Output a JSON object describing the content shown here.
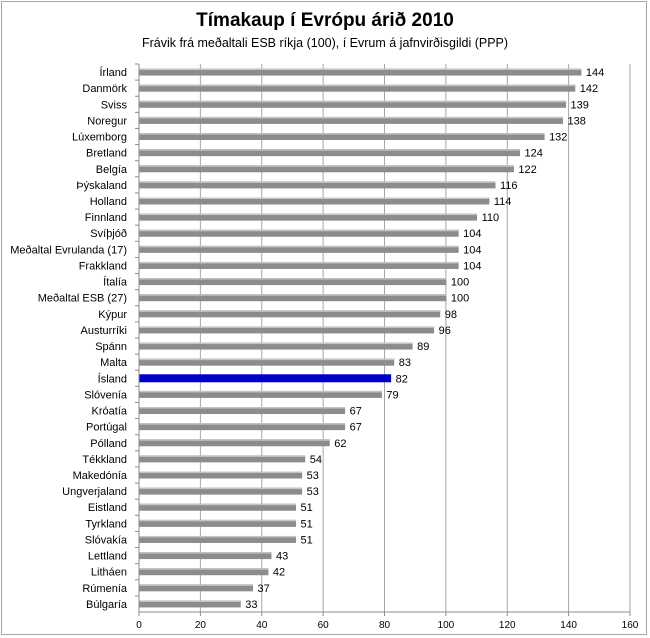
{
  "chart_data": {
    "type": "bar",
    "orientation": "horizontal",
    "title": "Tímakaup í Evrópu árið 2010",
    "subtitle": "Frávik frá meðaltali ESB ríkja (100), í Evrum á jafnvirðisgildi (PPP)",
    "categories": [
      "Írland",
      "Danmörk",
      "Sviss",
      "Noregur",
      "Lúxemborg",
      "Bretland",
      "Belgía",
      "Þýskaland",
      "Holland",
      "Finnland",
      "Svíþjóð",
      "Meðaltal Evrulanda (17)",
      "Frakkland",
      "Ítalía",
      "Meðaltal ESB (27)",
      "Kýpur",
      "Austurríki",
      "Spánn",
      "Malta",
      "Ísland",
      "Slóvenía",
      "Króatía",
      "Portúgal",
      "Pólland",
      "Tékkland",
      "Makedónía",
      "Ungverjaland",
      "Eistland",
      "Tyrkland",
      "Slóvakía",
      "Lettland",
      "Litháen",
      "Rúmenía",
      "Búlgaría"
    ],
    "values": [
      144,
      142,
      139,
      138,
      132,
      124,
      122,
      116,
      114,
      110,
      104,
      104,
      104,
      100,
      100,
      98,
      96,
      89,
      83,
      82,
      79,
      67,
      67,
      62,
      54,
      53,
      53,
      51,
      51,
      51,
      43,
      42,
      37,
      33
    ],
    "highlight": "Ísland",
    "xlim": [
      0,
      160
    ],
    "xticks": [
      0,
      20,
      40,
      60,
      80,
      100,
      120,
      140,
      160
    ],
    "grid": true,
    "colors": {
      "bar": "#8c8c8c",
      "highlight": "#0000cc",
      "grid": "#a6a6a6"
    }
  }
}
